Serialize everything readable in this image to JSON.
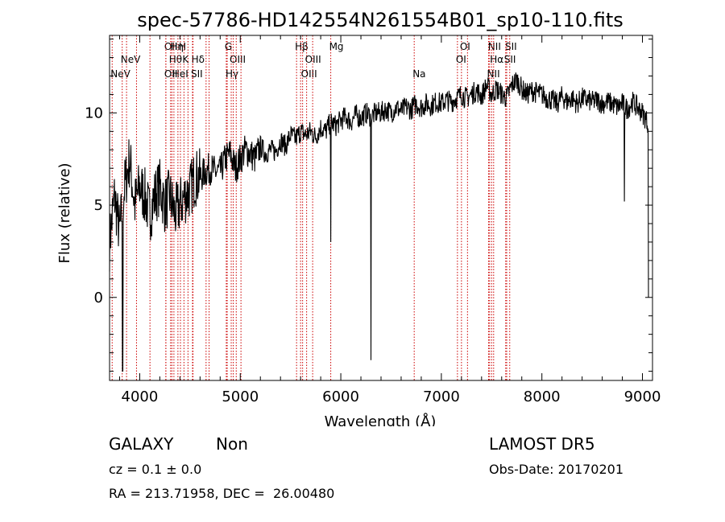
{
  "info": {
    "object_class": "GALAXY",
    "subclass": "Non",
    "survey": "LAMOST DR5",
    "redshift": "cz = 0.1 ± 0.0",
    "obs_date": "Obs-Date: 20170201",
    "coords": "RA = 213.71958, DEC =  26.00480"
  },
  "colors": {
    "spectrum": "#000000",
    "line_marker": "#cc0000",
    "axes": "#000000"
  },
  "chart_data": {
    "type": "line",
    "title": "spec-57786-HD142554N261554B01_sp10-110.fits",
    "xlabel": "Wavelength (Å)",
    "ylabel": "Flux (relative)",
    "xlim": [
      3700,
      9100
    ],
    "ylim": [
      -4.5,
      14.2
    ],
    "xticks": [
      4000,
      5000,
      6000,
      7000,
      8000,
      9000
    ],
    "yticks": [
      0,
      5,
      10
    ],
    "grid": false,
    "legend": "none",
    "series": [
      {
        "x": [
          3700,
          3750,
          3800,
          3850,
          3900,
          3950,
          4000,
          4050,
          4100,
          4150,
          4200,
          4250,
          4300,
          4350,
          4400,
          4450,
          4500,
          4550,
          4600,
          4650,
          4700,
          4750,
          4800,
          4850,
          4900,
          4950,
          5000,
          5050,
          5100,
          5150,
          5200,
          5250,
          5300,
          5350,
          5400,
          5450,
          5500,
          5550,
          5600,
          5650,
          5700,
          5750,
          5800,
          5850,
          5900,
          5950,
          6000,
          6050,
          6100,
          6150,
          6200,
          6250,
          6300,
          6350,
          6400,
          6450,
          6500,
          6550,
          6600,
          6650,
          6700,
          6750,
          6800,
          6850,
          6900,
          6950,
          7000,
          7050,
          7100,
          7150,
          7200,
          7250,
          7300,
          7350,
          7400,
          7450,
          7500,
          7550,
          7600,
          7650,
          7700,
          7750,
          7800,
          7850,
          7900,
          7950,
          8000,
          8050,
          8100,
          8150,
          8200,
          8250,
          8300,
          8350,
          8400,
          8450,
          8500,
          8550,
          8600,
          8650,
          8700,
          8750,
          8800,
          8850,
          8900,
          8950,
          9000,
          9050
        ],
        "y": [
          3.0,
          5.5,
          3.5,
          6.0,
          7.5,
          5.0,
          6.0,
          5.5,
          4.5,
          5.5,
          6.0,
          5.0,
          5.5,
          4.5,
          5.0,
          5.5,
          5.8,
          6.5,
          6.5,
          6.8,
          7.0,
          6.8,
          6.8,
          7.5,
          7.8,
          7.0,
          7.5,
          8.0,
          7.8,
          7.5,
          8.2,
          7.8,
          8.0,
          7.9,
          8.5,
          8.2,
          8.8,
          8.6,
          9.0,
          8.8,
          9.0,
          8.7,
          9.2,
          9.0,
          9.5,
          9.3,
          9.6,
          9.8,
          9.5,
          9.9,
          9.7,
          10.0,
          9.8,
          10.0,
          10.0,
          10.2,
          10.0,
          10.3,
          10.1,
          10.3,
          10.2,
          10.5,
          10.3,
          10.5,
          10.4,
          10.6,
          10.5,
          10.7,
          10.6,
          10.8,
          11.0,
          10.8,
          11.0,
          11.2,
          10.9,
          11.5,
          11.0,
          11.3,
          11.0,
          10.8,
          11.5,
          11.8,
          11.3,
          11.0,
          11.2,
          11.1,
          11.0,
          10.8,
          10.7,
          10.5,
          10.9,
          10.6,
          10.8,
          10.5,
          10.8,
          10.7,
          10.6,
          10.7,
          10.5,
          10.6,
          10.5,
          10.3,
          10.5,
          10.2,
          10.6,
          10.3,
          10.0,
          9.5
        ]
      }
    ],
    "absorption_dips": [
      {
        "x": 3830,
        "y": -4.0
      },
      {
        "x": 5900,
        "y": 3.0
      },
      {
        "x": 6300,
        "y": -3.4
      },
      {
        "x": 8820,
        "y": 5.2
      },
      {
        "x": 9060,
        "y": 0.0
      }
    ],
    "spectral_lines": [
      {
        "x": 3726,
        "label": "NeV",
        "row": 4
      },
      {
        "x": 3826,
        "label": "NeV",
        "row": 3
      },
      {
        "x": 3869,
        "label": "",
        "row": 0
      },
      {
        "x": 3968,
        "label": "",
        "row": 0
      },
      {
        "x": 4102,
        "label": "",
        "row": 0
      },
      {
        "x": 4260,
        "label": "OII",
        "row": 1
      },
      {
        "x": 4320,
        "label": "Hη",
        "row": 1
      },
      {
        "x": 4405,
        "label": "H",
        "row": 1
      },
      {
        "x": 4307,
        "label": "Hθ",
        "row": 2
      },
      {
        "x": 4440,
        "label": "K",
        "row": 2
      },
      {
        "x": 4260,
        "label": "OII",
        "row": 4
      },
      {
        "x": 4340,
        "label": "HeI",
        "row": 4
      },
      {
        "x": 4530,
        "label": "Hδ",
        "row": 2
      },
      {
        "x": 4525,
        "label": "SII",
        "row": 4
      },
      {
        "x": 4380,
        "label": "",
        "row": 0
      },
      {
        "x": 4480,
        "label": "",
        "row": 0
      },
      {
        "x": 4660,
        "label": "",
        "row": 0
      },
      {
        "x": 4690,
        "label": "",
        "row": 0
      },
      {
        "x": 4861,
        "label": "G",
        "row": 1
      },
      {
        "x": 4910,
        "label": "OIII",
        "row": 2
      },
      {
        "x": 4870,
        "label": "Hγ",
        "row": 4
      },
      {
        "x": 4930,
        "label": "",
        "row": 0
      },
      {
        "x": 4960,
        "label": "",
        "row": 0
      },
      {
        "x": 5007,
        "label": "",
        "row": 0
      },
      {
        "x": 5560,
        "label": "Hβ",
        "row": 1
      },
      {
        "x": 5600,
        "label": "",
        "row": 0
      },
      {
        "x": 5660,
        "label": "OIII",
        "row": 2
      },
      {
        "x": 5620,
        "label": "OIII",
        "row": 4
      },
      {
        "x": 5720,
        "label": "",
        "row": 0
      },
      {
        "x": 5900,
        "label": "Mg",
        "row": 1
      },
      {
        "x": 6730,
        "label": "Na",
        "row": 4
      },
      {
        "x": 7200,
        "label": "OI",
        "row": 1
      },
      {
        "x": 7160,
        "label": "OI",
        "row": 2
      },
      {
        "x": 7260,
        "label": "",
        "row": 0
      },
      {
        "x": 7480,
        "label": "NII",
        "row": 1
      },
      {
        "x": 7500,
        "label": "Hα",
        "row": 2
      },
      {
        "x": 7470,
        "label": "NII",
        "row": 4
      },
      {
        "x": 7650,
        "label": "SII",
        "row": 1
      },
      {
        "x": 7640,
        "label": "SII",
        "row": 2
      },
      {
        "x": 7520,
        "label": "",
        "row": 0
      },
      {
        "x": 7680,
        "label": "",
        "row": 0
      }
    ]
  }
}
